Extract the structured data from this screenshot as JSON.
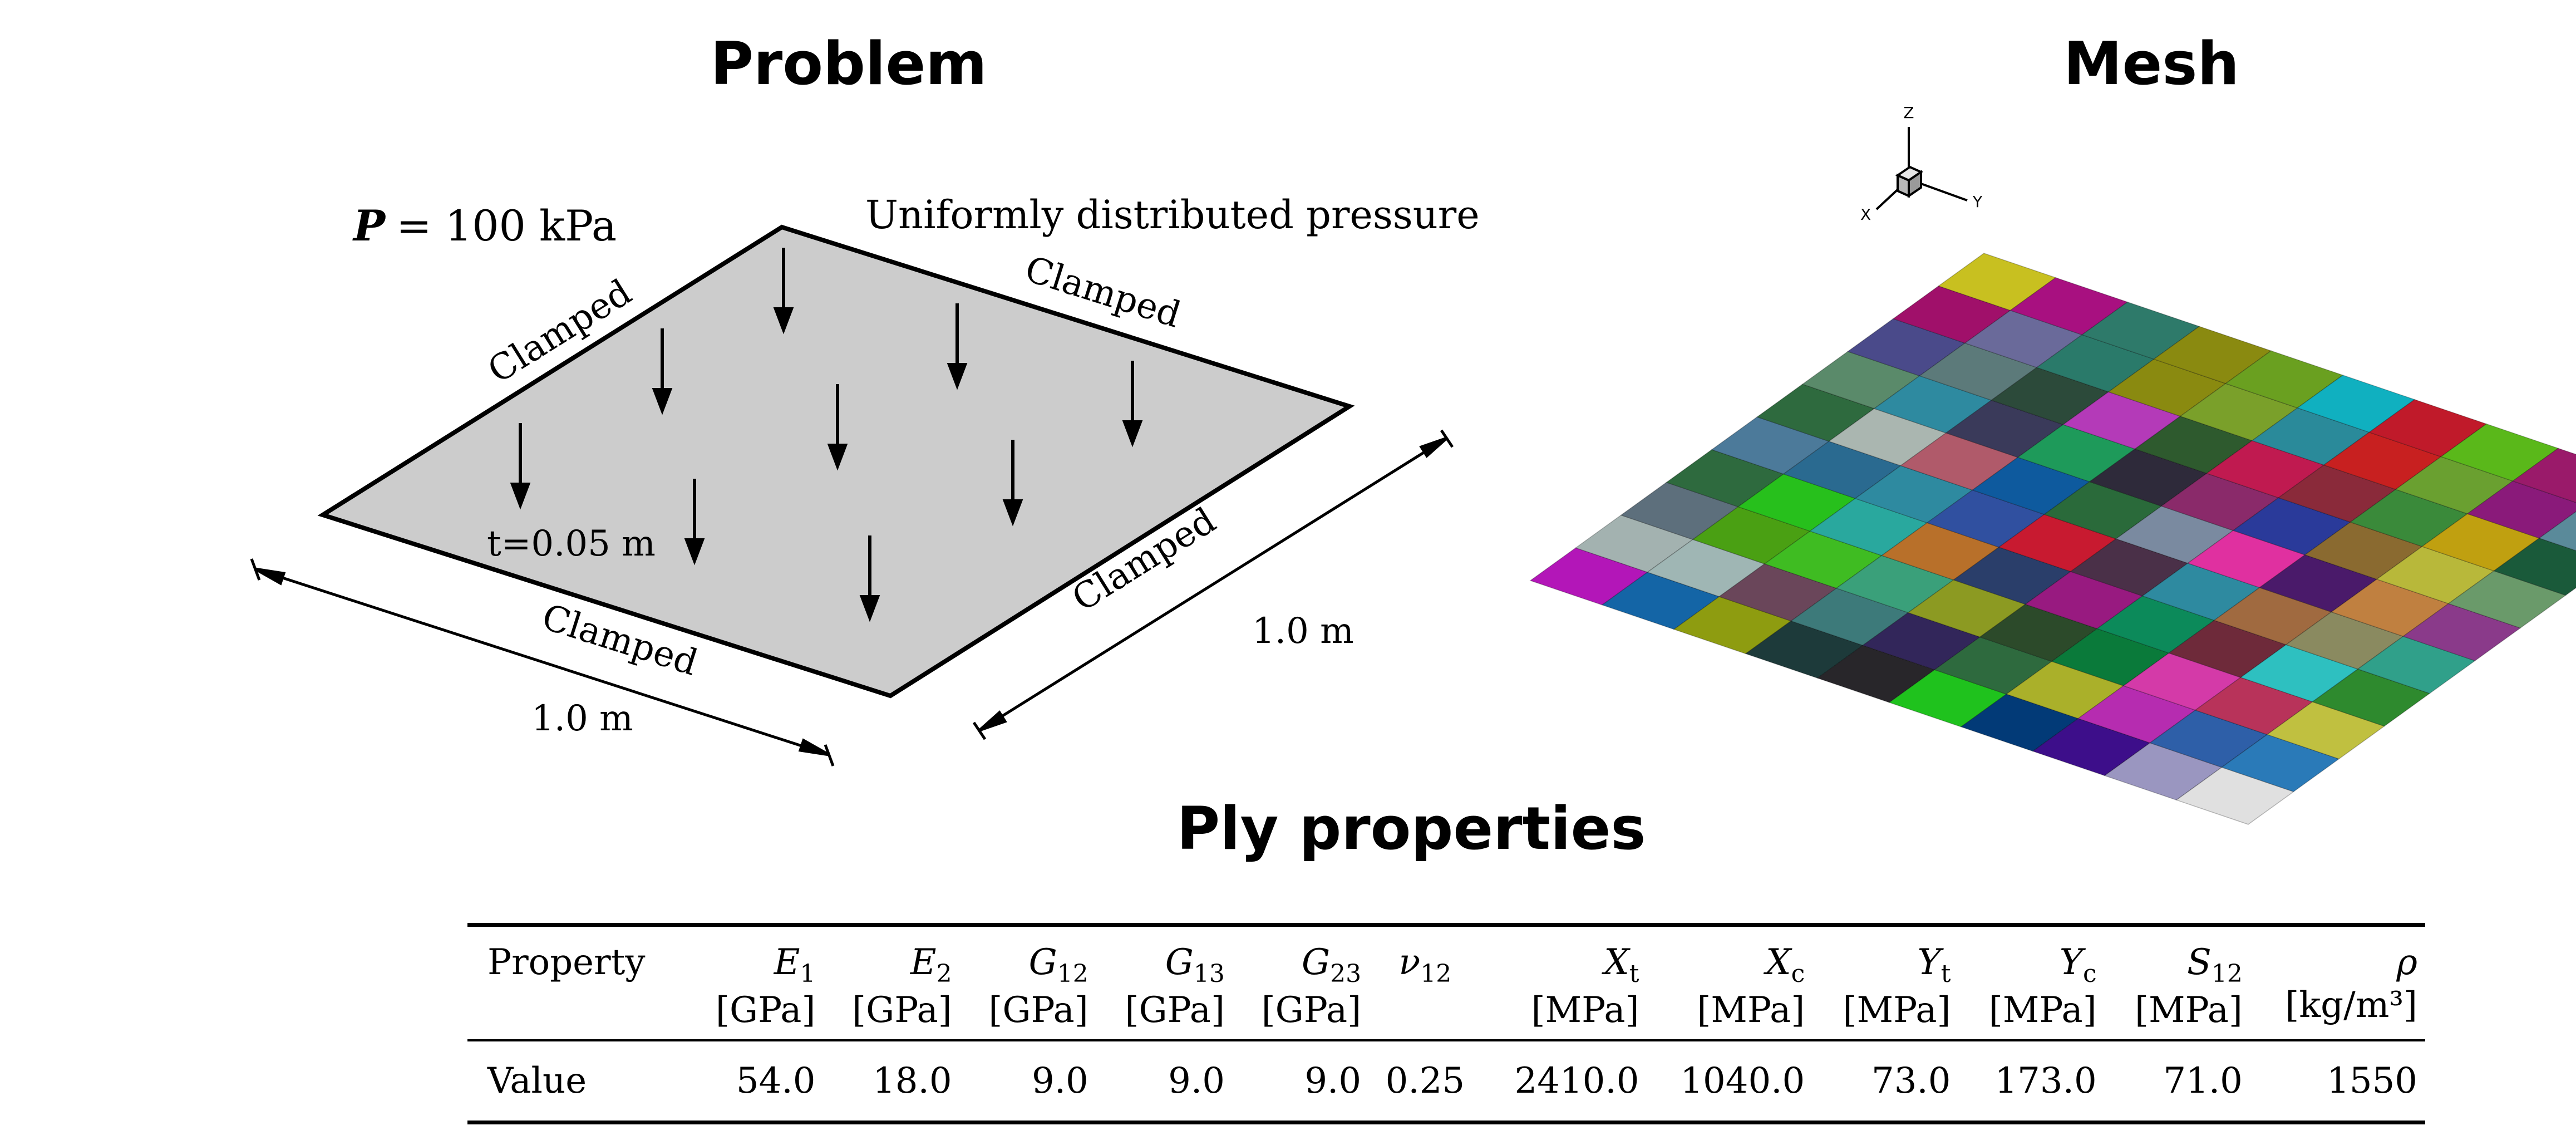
{
  "headings": {
    "problem": "Problem",
    "mesh": "Mesh",
    "ply_properties": "Ply properties"
  },
  "problem_figure": {
    "pressure_label": "= 100 kPa",
    "pressure_symbol": "P",
    "load_description": "Uniformly distributed pressure",
    "edge_labels": [
      "Clamped",
      "Clamped",
      "Clamped",
      "Clamped"
    ],
    "thickness_label": "t=0.05 m",
    "dimension_x": "1.0 m",
    "dimension_y": "1.0 m"
  },
  "mesh_figure": {
    "axes": {
      "z": "Z",
      "y": "Y",
      "x": "X"
    },
    "grid_size": 10,
    "colors": [
      [
        "#b316b8",
        "#1465a6",
        "#8e9c10",
        "#1d3a3a",
        "#28262a",
        "#1fc21d",
        "#023a77",
        "#3d0e8a",
        "#9a96c0",
        "#e0e0e0"
      ],
      [
        "#a3b2b0",
        "#9fb6b4",
        "#6a465a",
        "#3d7a7a",
        "#32265a",
        "#2e6a3e",
        "#aab02a",
        "#b62cb0",
        "#2e5fa8",
        "#2a7ab8"
      ],
      [
        "#5d6f7c",
        "#4aa013",
        "#3fbc22",
        "#3aa07a",
        "#8c9a22",
        "#2c4a2a",
        "#0a7a3a",
        "#d43aa8",
        "#b8335a",
        "#c0c040"
      ],
      [
        "#2e6a3e",
        "#27c01c",
        "#29a89e",
        "#b8702a",
        "#2a3e6a",
        "#981a80",
        "#0c8a5a",
        "#6e2a3a",
        "#2ec0c0",
        "#2e8a2e"
      ],
      [
        "#4c7a9a",
        "#2a6a90",
        "#2e8aa0",
        "#3050a0",
        "#c81a30",
        "#4a3048",
        "#2e8aa0",
        "#a06a40",
        "#8a8a60",
        "#30a08a"
      ],
      [
        "#2e6a3e",
        "#aab6b0",
        "#b05a6a",
        "#0e5a9e",
        "#2a6a3a",
        "#7a8aa0",
        "#e030a0",
        "#4a1a6a",
        "#c08040",
        "#8a3a8a"
      ],
      [
        "#5a8a6a",
        "#2e8aa0",
        "#3a3a5a",
        "#1e9a5a",
        "#2e2a3a",
        "#8a2a6a",
        "#2a3a9a",
        "#8a6a30",
        "#b8b83a",
        "#6a9a6a"
      ],
      [
        "#4a4a8a",
        "#5c7a7a",
        "#2c4a3a",
        "#b43ab8",
        "#2e5a2e",
        "#c01a50",
        "#8a2a3a",
        "#3a8a3a",
        "#c0a010",
        "#1a5a3a"
      ],
      [
        "#a0106a",
        "#6a6a9a",
        "#2a7a6a",
        "#8a8a10",
        "#7aa02a",
        "#2a8a9a",
        "#c82020",
        "#6aa030",
        "#8a1a7a",
        "#5a8a9a"
      ],
      [
        "#c8c020",
        "#a81080",
        "#2e7a6a",
        "#8a8a10",
        "#6aa020",
        "#10b0c0",
        "#c01a2a",
        "#5ab81a",
        "#9a1a6a",
        "#6a8a9a"
      ]
    ]
  },
  "ply_table": {
    "columns": [
      {
        "symbol": "Property",
        "sub": "",
        "unit": ""
      },
      {
        "symbol": "E",
        "sub": "1",
        "unit": "[GPa]"
      },
      {
        "symbol": "E",
        "sub": "2",
        "unit": "[GPa]"
      },
      {
        "symbol": "G",
        "sub": "12",
        "unit": "[GPa]"
      },
      {
        "symbol": "G",
        "sub": "13",
        "unit": "[GPa]"
      },
      {
        "symbol": "G",
        "sub": "23",
        "unit": "[GPa]"
      },
      {
        "symbol": "ν",
        "sub": "12",
        "unit": ""
      },
      {
        "symbol": "X",
        "sub": "t",
        "unit": "[MPa]"
      },
      {
        "symbol": "X",
        "sub": "c",
        "unit": "[MPa]"
      },
      {
        "symbol": "Y",
        "sub": "t",
        "unit": "[MPa]"
      },
      {
        "symbol": "Y",
        "sub": "c",
        "unit": "[MPa]"
      },
      {
        "symbol": "S",
        "sub": "12",
        "unit": "[MPa]"
      },
      {
        "symbol": "ρ",
        "sub": "",
        "unit": "[kg/m³]"
      }
    ],
    "row_label": "Value",
    "values": [
      "54.0",
      "18.0",
      "9.0",
      "9.0",
      "9.0",
      "0.25",
      "2410.0",
      "1040.0",
      "73.0",
      "173.0",
      "71.0",
      "1550"
    ]
  }
}
